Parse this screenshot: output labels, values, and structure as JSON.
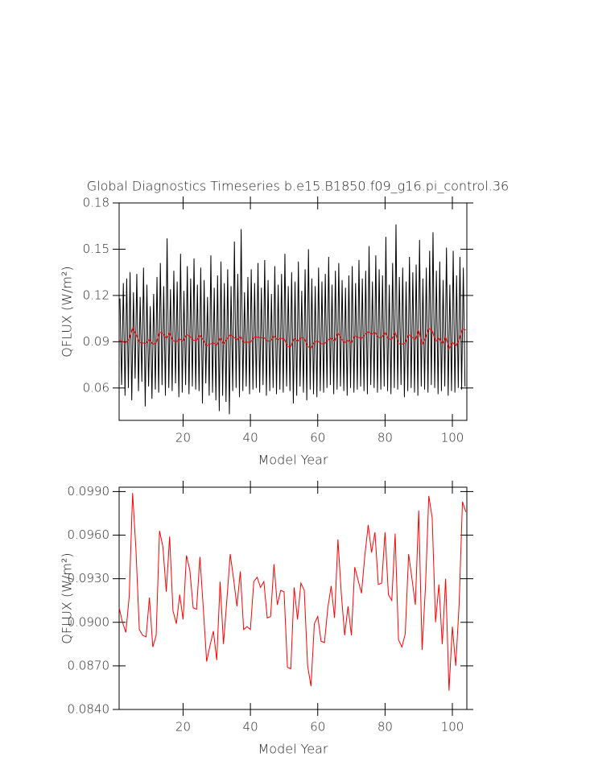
{
  "chart_data": [
    {
      "type": "line",
      "title": "Global Diagnostics Timeseries b.e15.B1850.f09_g16.pi_control.36",
      "xlabel": "Model Year",
      "ylabel": "QFLUX (W/m²)",
      "xlim": [
        1,
        104.3
      ],
      "xticks": [
        20,
        40,
        60,
        80,
        100
      ],
      "ylim": [
        0.039,
        0.18
      ],
      "yticks": [
        0.06,
        0.09,
        0.12,
        0.15,
        0.18
      ],
      "series": [
        {
          "color": "#000000",
          "x": [
            1.25,
            1.75,
            2.25,
            2.75,
            3.25,
            3.75,
            4.25,
            4.75,
            5.25,
            5.75,
            6.25,
            6.75,
            7.25,
            7.75,
            8.25,
            8.75,
            9.25,
            9.75,
            10.25,
            10.75,
            11.25,
            11.75,
            12.25,
            12.75,
            13.25,
            13.75,
            14.25,
            14.75,
            15.25,
            15.75,
            16.25,
            16.75,
            17.25,
            17.75,
            18.25,
            18.75,
            19.25,
            19.75,
            20.25,
            20.75,
            21.25,
            21.75,
            22.25,
            22.75,
            23.25,
            23.75,
            24.25,
            24.75,
            25.25,
            25.75,
            26.25,
            26.75,
            27.25,
            27.75,
            28.25,
            28.75,
            29.25,
            29.75,
            30.25,
            30.75,
            31.25,
            31.75,
            32.25,
            32.75,
            33.25,
            33.75,
            34.25,
            34.75,
            35.25,
            35.75,
            36.25,
            36.75,
            37.25,
            37.75,
            38.25,
            38.75,
            39.25,
            39.75,
            40.25,
            40.75,
            41.25,
            41.75,
            42.25,
            42.75,
            43.25,
            43.75,
            44.25,
            44.75,
            45.25,
            45.75,
            46.25,
            46.75,
            47.25,
            47.75,
            48.25,
            48.75,
            49.25,
            49.75,
            50.25,
            50.75,
            51.25,
            51.75,
            52.25,
            52.75,
            53.25,
            53.75,
            54.25,
            54.75,
            55.25,
            55.75,
            56.25,
            56.75,
            57.25,
            57.75,
            58.25,
            58.75,
            59.25,
            59.75,
            60.25,
            60.75,
            61.25,
            61.75,
            62.25,
            62.75,
            63.25,
            63.75,
            64.25,
            64.75,
            65.25,
            65.75,
            66.25,
            66.75,
            67.25,
            67.75,
            68.25,
            68.75,
            69.25,
            69.75,
            70.25,
            70.75,
            71.25,
            71.75,
            72.25,
            72.75,
            73.25,
            73.75,
            74.25,
            74.75,
            75.25,
            75.75,
            76.25,
            76.75,
            77.25,
            77.75,
            78.25,
            78.75,
            79.25,
            79.75,
            80.25,
            80.75,
            81.25,
            81.75,
            82.25,
            82.75,
            83.25,
            83.75,
            84.25,
            84.75,
            85.25,
            85.75,
            86.25,
            86.75,
            87.25,
            87.75,
            88.25,
            88.75,
            89.25,
            89.75,
            90.25,
            90.75,
            91.25,
            91.75,
            92.25,
            92.75,
            93.25,
            93.75,
            94.25,
            94.75,
            95.25,
            95.75,
            96.25,
            96.75,
            97.25,
            97.75,
            98.25,
            98.75,
            99.25,
            99.75,
            100.25,
            100.75,
            101.25,
            101.75,
            102.25,
            102.75,
            103.25,
            103.75
          ],
          "values": [
            0.118,
            0.062,
            0.128,
            0.055,
            0.131,
            0.06,
            0.135,
            0.052,
            0.122,
            0.066,
            0.134,
            0.058,
            0.119,
            0.064,
            0.138,
            0.048,
            0.127,
            0.061,
            0.113,
            0.053,
            0.121,
            0.059,
            0.132,
            0.057,
            0.141,
            0.062,
            0.126,
            0.055,
            0.157,
            0.06,
            0.124,
            0.058,
            0.136,
            0.063,
            0.129,
            0.054,
            0.147,
            0.057,
            0.123,
            0.062,
            0.139,
            0.056,
            0.131,
            0.061,
            0.144,
            0.059,
            0.127,
            0.058,
            0.138,
            0.05,
            0.13,
            0.063,
            0.119,
            0.055,
            0.146,
            0.057,
            0.125,
            0.052,
            0.133,
            0.045,
            0.142,
            0.055,
            0.128,
            0.051,
            0.137,
            0.043,
            0.126,
            0.058,
            0.155,
            0.06,
            0.134,
            0.054,
            0.163,
            0.058,
            0.122,
            0.061,
            0.132,
            0.056,
            0.137,
            0.059,
            0.128,
            0.06,
            0.141,
            0.057,
            0.125,
            0.062,
            0.143,
            0.055,
            0.13,
            0.058,
            0.121,
            0.06,
            0.139,
            0.056,
            0.127,
            0.059,
            0.134,
            0.057,
            0.147,
            0.061,
            0.126,
            0.058,
            0.135,
            0.05,
            0.129,
            0.055,
            0.142,
            0.061,
            0.123,
            0.057,
            0.137,
            0.052,
            0.15,
            0.059,
            0.131,
            0.056,
            0.126,
            0.054,
            0.138,
            0.058,
            0.129,
            0.057,
            0.134,
            0.06,
            0.145,
            0.062,
            0.127,
            0.056,
            0.136,
            0.059,
            0.141,
            0.061,
            0.13,
            0.058,
            0.125,
            0.055,
            0.133,
            0.06,
            0.139,
            0.057,
            0.128,
            0.059,
            0.143,
            0.061,
            0.131,
            0.058,
            0.136,
            0.056,
            0.152,
            0.062,
            0.129,
            0.06,
            0.146,
            0.057,
            0.137,
            0.059,
            0.133,
            0.061,
            0.158,
            0.058,
            0.127,
            0.056,
            0.141,
            0.06,
            0.166,
            0.059,
            0.132,
            0.062,
            0.138,
            0.054,
            0.129,
            0.058,
            0.145,
            0.06,
            0.135,
            0.057,
            0.14,
            0.055,
            0.156,
            0.061,
            0.131,
            0.059,
            0.138,
            0.057,
            0.149,
            0.062,
            0.161,
            0.06,
            0.136,
            0.056,
            0.142,
            0.058,
            0.13,
            0.061,
            0.151,
            0.055,
            0.127,
            0.058,
            0.149,
            0.057,
            0.133,
            0.06,
            0.145,
            0.059,
            0.138,
            0.061
          ]
        },
        {
          "color": "#ff0000",
          "x": [
            1,
            2,
            3,
            4,
            5,
            6,
            7,
            8,
            9,
            10,
            11,
            12,
            13,
            14,
            15,
            16,
            17,
            18,
            19,
            20,
            21,
            22,
            23,
            24,
            25,
            26,
            27,
            28,
            29,
            30,
            31,
            32,
            33,
            34,
            35,
            36,
            37,
            38,
            39,
            40,
            41,
            42,
            43,
            44,
            45,
            46,
            47,
            48,
            49,
            50,
            51,
            52,
            53,
            54,
            55,
            56,
            57,
            58,
            59,
            60,
            61,
            62,
            63,
            64,
            65,
            66,
            67,
            68,
            69,
            70,
            71,
            72,
            73,
            74,
            75,
            76,
            77,
            78,
            79,
            80,
            81,
            82,
            83,
            84,
            85,
            86,
            87,
            88,
            89,
            90,
            91,
            92,
            93,
            94,
            95,
            96,
            97,
            98,
            99,
            100,
            101,
            102,
            103,
            104
          ],
          "values": [
            0.091,
            0.09,
            0.0893,
            0.0918,
            0.0989,
            0.095,
            0.0895,
            0.0891,
            0.089,
            0.0917,
            0.0883,
            0.0891,
            0.0963,
            0.0952,
            0.0921,
            0.0959,
            0.0908,
            0.0899,
            0.0919,
            0.0902,
            0.0946,
            0.0936,
            0.091,
            0.0909,
            0.0945,
            0.091,
            0.0873,
            0.0884,
            0.0894,
            0.0874,
            0.0928,
            0.0885,
            0.0915,
            0.0947,
            0.093,
            0.0911,
            0.0935,
            0.0895,
            0.0897,
            0.0895,
            0.0928,
            0.0931,
            0.0924,
            0.0928,
            0.0903,
            0.0904,
            0.094,
            0.0912,
            0.0922,
            0.0921,
            0.0869,
            0.0868,
            0.0924,
            0.0902,
            0.0927,
            0.0922,
            0.087,
            0.0856,
            0.0899,
            0.0904,
            0.0887,
            0.0886,
            0.091,
            0.0925,
            0.0903,
            0.0957,
            0.092,
            0.0891,
            0.0911,
            0.0891,
            0.0938,
            0.0929,
            0.092,
            0.0946,
            0.0967,
            0.0948,
            0.0962,
            0.0926,
            0.0927,
            0.0962,
            0.0919,
            0.0915,
            0.0961,
            0.0888,
            0.0883,
            0.0892,
            0.0947,
            0.093,
            0.0912,
            0.0977,
            0.0881,
            0.0924,
            0.0987,
            0.0972,
            0.09,
            0.0926,
            0.0885,
            0.093,
            0.0853,
            0.0897,
            0.087,
            0.0912,
            0.0983,
            0.0976
          ]
        }
      ]
    },
    {
      "type": "line",
      "xlabel": "Model Year",
      "ylabel": "QFLUX (W/m²)",
      "xlim": [
        1,
        104.3
      ],
      "xticks": [
        20,
        40,
        60,
        80,
        100
      ],
      "ylim": [
        0.084,
        0.0993
      ],
      "yticks": [
        {
          "value": 0.084,
          "label": "0.0840"
        },
        {
          "value": 0.087,
          "label": "0.0870"
        },
        {
          "value": 0.09,
          "label": "0.0900"
        },
        {
          "value": 0.093,
          "label": "0.0930"
        },
        {
          "value": 0.096,
          "label": "0.0960"
        },
        {
          "value": 0.099,
          "label": "0.0990"
        }
      ],
      "series": [
        {
          "color": "#ff0000",
          "x": [
            1,
            2,
            3,
            4,
            5,
            6,
            7,
            8,
            9,
            10,
            11,
            12,
            13,
            14,
            15,
            16,
            17,
            18,
            19,
            20,
            21,
            22,
            23,
            24,
            25,
            26,
            27,
            28,
            29,
            30,
            31,
            32,
            33,
            34,
            35,
            36,
            37,
            38,
            39,
            40,
            41,
            42,
            43,
            44,
            45,
            46,
            47,
            48,
            49,
            50,
            51,
            52,
            53,
            54,
            55,
            56,
            57,
            58,
            59,
            60,
            61,
            62,
            63,
            64,
            65,
            66,
            67,
            68,
            69,
            70,
            71,
            72,
            73,
            74,
            75,
            76,
            77,
            78,
            79,
            80,
            81,
            82,
            83,
            84,
            85,
            86,
            87,
            88,
            89,
            90,
            91,
            92,
            93,
            94,
            95,
            96,
            97,
            98,
            99,
            100,
            101,
            102,
            103,
            104
          ],
          "values": [
            0.091,
            0.09,
            0.0893,
            0.0918,
            0.0989,
            0.095,
            0.0895,
            0.0891,
            0.089,
            0.0917,
            0.0883,
            0.0891,
            0.0963,
            0.0952,
            0.0921,
            0.0959,
            0.0908,
            0.0899,
            0.0919,
            0.0902,
            0.0946,
            0.0936,
            0.091,
            0.0909,
            0.0945,
            0.091,
            0.0873,
            0.0884,
            0.0894,
            0.0874,
            0.0928,
            0.0885,
            0.0915,
            0.0947,
            0.093,
            0.0911,
            0.0935,
            0.0895,
            0.0897,
            0.0895,
            0.0928,
            0.0931,
            0.0924,
            0.0928,
            0.0903,
            0.0904,
            0.094,
            0.0912,
            0.0922,
            0.0921,
            0.0869,
            0.0868,
            0.0924,
            0.0902,
            0.0927,
            0.0922,
            0.087,
            0.0856,
            0.0899,
            0.0904,
            0.0887,
            0.0886,
            0.091,
            0.0925,
            0.0903,
            0.0957,
            0.092,
            0.0891,
            0.0911,
            0.0891,
            0.0938,
            0.0929,
            0.092,
            0.0946,
            0.0967,
            0.0948,
            0.0962,
            0.0926,
            0.0927,
            0.0962,
            0.0919,
            0.0915,
            0.0961,
            0.0888,
            0.0883,
            0.0892,
            0.0947,
            0.093,
            0.0912,
            0.0977,
            0.0881,
            0.0924,
            0.0987,
            0.0972,
            0.09,
            0.0926,
            0.0885,
            0.093,
            0.0853,
            0.0897,
            0.087,
            0.0912,
            0.0983,
            0.0976
          ]
        }
      ]
    }
  ]
}
